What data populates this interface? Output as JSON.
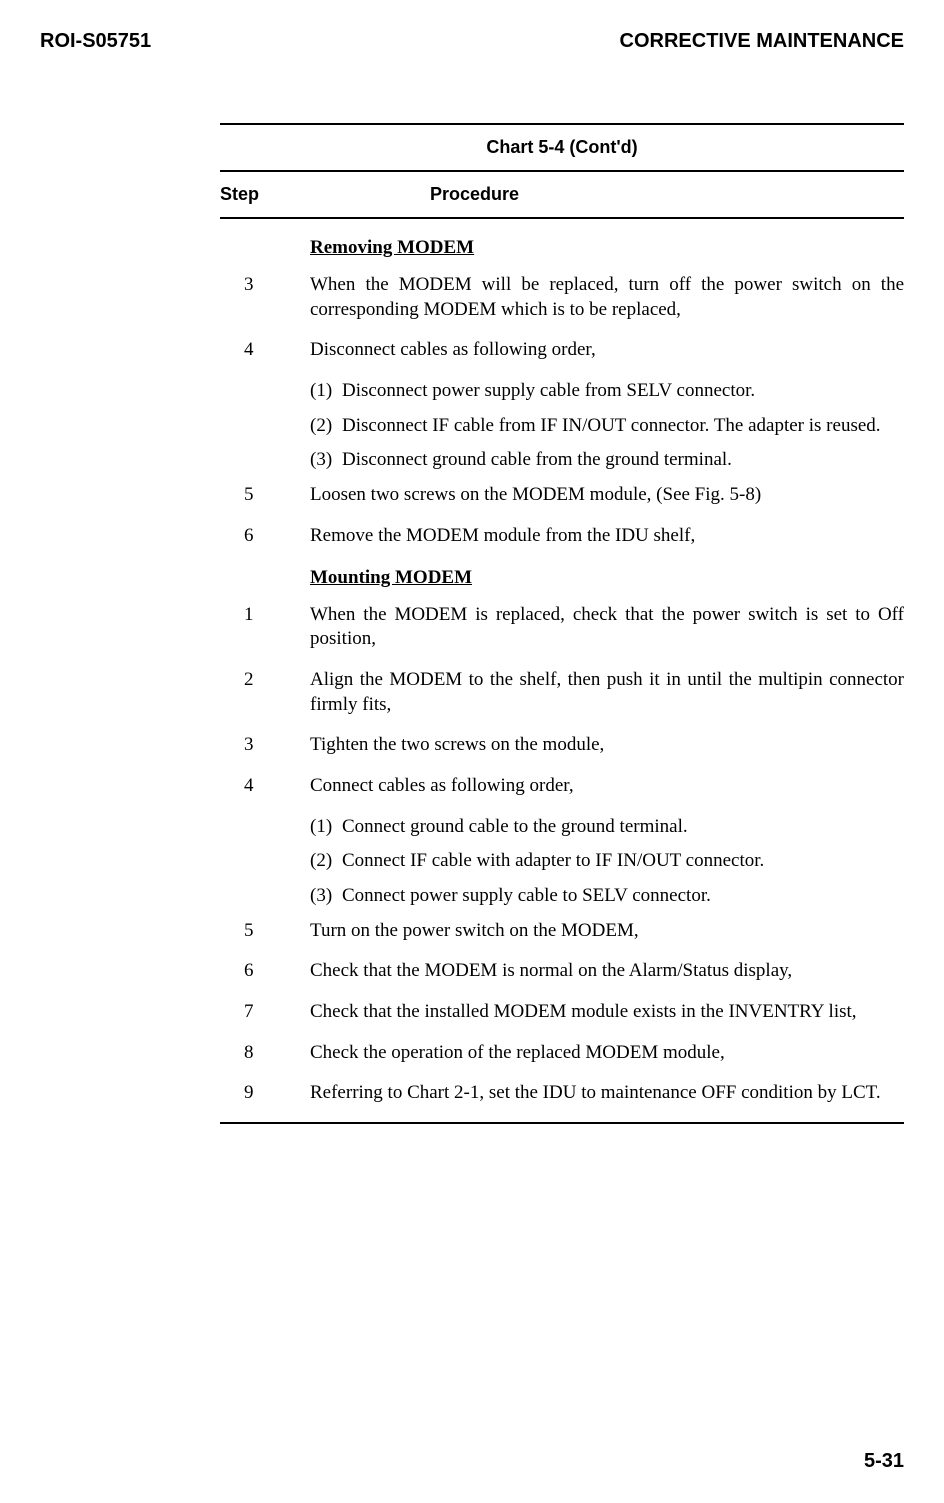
{
  "header": {
    "left": "ROI-S05751",
    "right": "CORRECTIVE MAINTENANCE"
  },
  "chart": {
    "title": "Chart 5-4  (Cont'd)",
    "columns": {
      "step": "Step",
      "procedure": "Procedure"
    }
  },
  "sections": {
    "removing": {
      "heading": "Removing MODEM",
      "steps": {
        "s3": {
          "num": "3",
          "text": "When the MODEM will be replaced, turn off the power switch on the corresponding MODEM which is to be replaced,"
        },
        "s4": {
          "num": "4",
          "text": "Disconnect cables as following order,",
          "sub1": {
            "num": "(1)",
            "text": "Disconnect power supply cable from SELV connector."
          },
          "sub2": {
            "num": "(2)",
            "text": "Disconnect IF cable from IF IN/OUT connector.  The adapter is reused."
          },
          "sub3": {
            "num": "(3)",
            "text": "Disconnect ground cable from the ground terminal."
          }
        },
        "s5": {
          "num": "5",
          "text": "Loosen two screws on the MODEM module, (See Fig. 5-8)"
        },
        "s6": {
          "num": "6",
          "text": "Remove the MODEM module from the IDU shelf,"
        }
      }
    },
    "mounting": {
      "heading": "Mounting MODEM",
      "steps": {
        "s1": {
          "num": "1",
          "text": "When the MODEM is replaced, check that the power switch is set to Off position,"
        },
        "s2": {
          "num": "2",
          "text": "Align the MODEM to the shelf, then push it in until the multipin connector firmly fits,"
        },
        "s3": {
          "num": "3",
          "text": "Tighten the two screws on the module,"
        },
        "s4": {
          "num": "4",
          "text": "Connect cables as following order,",
          "sub1": {
            "num": "(1)",
            "text": "Connect ground cable to the ground terminal."
          },
          "sub2": {
            "num": "(2)",
            "text": "Connect IF cable with adapter to IF IN/OUT connector."
          },
          "sub3": {
            "num": "(3)",
            "text": "Connect power supply cable to SELV connector."
          }
        },
        "s5": {
          "num": "5",
          "text": "Turn on the power switch on the MODEM,"
        },
        "s6": {
          "num": "6",
          "text": "Check that the MODEM is normal on the Alarm/Status display,"
        },
        "s7": {
          "num": "7",
          "text": "Check that the installed MODEM module exists in the INVENTRY list,"
        },
        "s8": {
          "num": "8",
          "text": "Check the operation of the replaced MODEM module,"
        },
        "s9": {
          "num": "9",
          "text": "Referring to Chart 2-1, set the IDU to maintenance OFF condition by LCT."
        }
      }
    }
  },
  "page_number": "5-31"
}
